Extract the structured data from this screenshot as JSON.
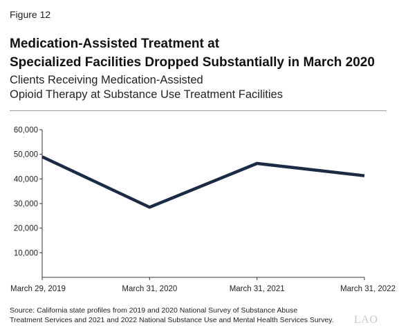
{
  "figure_label": "Figure 12",
  "title_line1": "Medication-Assisted Treatment at",
  "title_line2": "Specialized Facilities Dropped Substantially in March 2020",
  "subtitle_line1": "Clients Receiving Medication-Assisted",
  "subtitle_line2": "Opioid Therapy at Substance Use Treatment Facilities",
  "source_line1": "Source: California state profiles from 2019 and 2020 National Survey of Substance Abuse",
  "source_line2": "Treatment Services and 2021 and 2022 National Substance Use and Mental Health Services Survey.",
  "logo": "LAO",
  "chart_data": {
    "type": "line",
    "title": "Medication-Assisted Treatment at Specialized Facilities Dropped Substantially in March 2020",
    "subtitle": "Clients Receiving Medication-Assisted Opioid Therapy at Substance Use Treatment Facilities",
    "categories": [
      "March 29, 2019",
      "March 31, 2020",
      "March 31, 2021",
      "March 31, 2022"
    ],
    "series": [
      {
        "values": [
          49000,
          28500,
          46300,
          41300
        ],
        "color": "#1b2a45"
      }
    ],
    "ylim": [
      0,
      60000
    ],
    "yticks": [
      10000,
      20000,
      30000,
      40000,
      50000,
      60000
    ],
    "ytick_labels": [
      "10,000",
      "20,000",
      "30,000",
      "40,000",
      "50,000",
      "60,000"
    ],
    "xlabel": "",
    "ylabel": "",
    "grid": false,
    "legend": "none"
  }
}
